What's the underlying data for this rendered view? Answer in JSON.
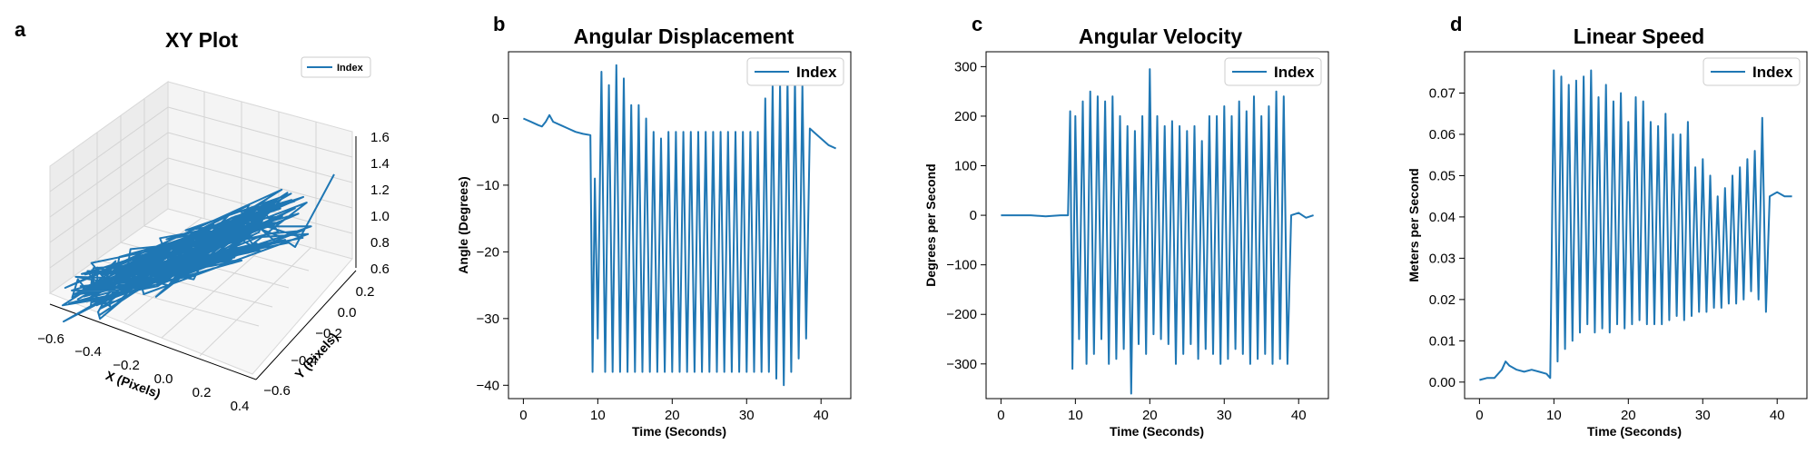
{
  "colors": {
    "series": "#1f77b4",
    "axis": "#000000",
    "pane": "#f2f2f2",
    "pane_grid": "#cfcfcf",
    "legend_border": "#cccccc"
  },
  "chart_data": [
    {
      "panel": "a",
      "type": "line3d",
      "title": "XY Plot",
      "xlabel": "X (Pixels)",
      "ylabel": "Y (Pixels)",
      "zlabel": "",
      "xlim": [
        -0.6,
        0.5
      ],
      "ylim": [
        -0.6,
        0.2
      ],
      "zlim": [
        0.6,
        1.6
      ],
      "xticks": [
        "−0.6",
        "−0.4",
        "−0.2",
        "0.0",
        "0.2",
        "0.4"
      ],
      "yticks": [
        "−0.6",
        "−0.4",
        "−0.2",
        "0.0",
        "0.2"
      ],
      "zticks": [
        "0.6",
        "0.8",
        "1.0",
        "1.2",
        "1.4",
        "1.6"
      ],
      "legend": [
        "Index"
      ],
      "legend_position": "top-right",
      "grid": true
    },
    {
      "panel": "b",
      "type": "line",
      "title": "Angular Displacement",
      "xlabel": "Time (Seconds)",
      "ylabel": "Angle (Degrees)",
      "xlim": [
        -2,
        44
      ],
      "ylim": [
        -42,
        10
      ],
      "xticks": [
        0,
        10,
        20,
        30,
        40
      ],
      "yticks": [
        0,
        -10,
        -20,
        -30,
        -40
      ],
      "legend": [
        "Index"
      ],
      "legend_position": "top-right",
      "grid": false,
      "series": [
        {
          "name": "Index",
          "x": [
            0,
            1,
            2,
            2.5,
            3,
            3.5,
            4,
            5,
            6,
            7,
            8,
            9,
            9.3,
            9.6,
            10,
            10.5,
            11,
            11.5,
            12,
            12.5,
            13,
            13.5,
            14,
            14.5,
            15,
            15.5,
            16,
            16.5,
            17,
            17.5,
            18,
            18.5,
            19,
            19.5,
            20,
            20.5,
            21,
            21.5,
            22,
            22.5,
            23,
            23.5,
            24,
            24.5,
            25,
            25.5,
            26,
            26.5,
            27,
            27.5,
            28,
            28.5,
            29,
            29.5,
            30,
            30.5,
            31,
            31.5,
            32,
            32.5,
            33,
            33.5,
            34,
            34.5,
            35,
            35.5,
            36,
            36.5,
            37,
            37.5,
            38,
            38.5,
            39,
            40,
            41,
            42
          ],
          "values": [
            0,
            -0.5,
            -1,
            -1.2,
            -0.5,
            0.5,
            -0.5,
            -1,
            -1.5,
            -2,
            -2.3,
            -2.5,
            -38,
            -9,
            -33,
            7,
            -38,
            5,
            -38,
            8,
            -38,
            6,
            -38,
            2,
            -38,
            2,
            -38,
            0,
            -38,
            -2,
            -38,
            -3,
            -38,
            -2,
            -38,
            -2,
            -38,
            -2,
            -38,
            -2,
            -38,
            -2,
            -38,
            -2,
            -38,
            -2,
            -38,
            -2,
            -38,
            -2,
            -38,
            -2,
            -38,
            -2,
            -38,
            -2,
            -38,
            -2,
            -38,
            3,
            -38,
            5,
            -39,
            5,
            -40,
            6,
            -38,
            6,
            -36,
            5,
            -33,
            -1.5,
            -2,
            -3,
            -4,
            -4.5
          ]
        }
      ]
    },
    {
      "panel": "c",
      "type": "line",
      "title": "Angular Velocity",
      "xlabel": "Time (Seconds)",
      "ylabel": "Degrees per Second",
      "xlim": [
        -2,
        44
      ],
      "ylim": [
        -370,
        330
      ],
      "xticks": [
        0,
        10,
        20,
        30,
        40
      ],
      "yticks": [
        300,
        200,
        100,
        0,
        -100,
        -200,
        -300
      ],
      "legend": [
        "Index"
      ],
      "legend_position": "top-right",
      "grid": false,
      "series": [
        {
          "name": "Index",
          "x": [
            0,
            2,
            4,
            6,
            8,
            9,
            9.3,
            9.6,
            10,
            10.5,
            11,
            11.5,
            12,
            12.5,
            13,
            13.5,
            14,
            14.5,
            15,
            15.5,
            16,
            16.5,
            17,
            17.5,
            18,
            18.5,
            19,
            19.5,
            20,
            20.5,
            21,
            21.5,
            22,
            22.5,
            23,
            23.5,
            24,
            24.5,
            25,
            25.5,
            26,
            26.5,
            27,
            27.5,
            28,
            28.5,
            29,
            29.5,
            30,
            30.5,
            31,
            31.5,
            32,
            32.5,
            33,
            33.5,
            34,
            34.5,
            35,
            35.5,
            36,
            36.5,
            37,
            37.5,
            38,
            38.5,
            39,
            40,
            41,
            42
          ],
          "values": [
            0,
            0,
            0,
            -2,
            0,
            0,
            210,
            -310,
            200,
            -250,
            230,
            -300,
            250,
            -280,
            240,
            -250,
            230,
            -300,
            240,
            -290,
            200,
            -270,
            180,
            -360,
            170,
            -260,
            200,
            -280,
            295,
            -240,
            200,
            -250,
            180,
            -260,
            190,
            -300,
            180,
            -280,
            170,
            -260,
            180,
            -290,
            150,
            -270,
            200,
            -280,
            200,
            -300,
            220,
            -290,
            200,
            -270,
            230,
            -280,
            210,
            -300,
            240,
            -290,
            200,
            -280,
            220,
            -300,
            250,
            -290,
            240,
            -300,
            0,
            5,
            -5,
            0
          ]
        }
      ]
    },
    {
      "panel": "d",
      "type": "line",
      "title": "Linear Speed",
      "xlabel": "Time (Seconds)",
      "ylabel": "Meters per Second",
      "xlim": [
        -2,
        44
      ],
      "ylim": [
        -0.004,
        0.08
      ],
      "xticks": [
        0,
        10,
        20,
        30,
        40
      ],
      "yticks": [
        0.07,
        0.06,
        0.05,
        0.04,
        0.03,
        0.02,
        0.01,
        0.0
      ],
      "legend": [
        "Index"
      ],
      "legend_position": "top-right",
      "grid": false,
      "series": [
        {
          "name": "Index",
          "x": [
            0,
            1,
            2,
            3,
            3.5,
            4,
            5,
            6,
            7,
            8,
            9,
            9.5,
            10,
            10.5,
            11,
            11.5,
            12,
            12.5,
            13,
            13.5,
            14,
            14.5,
            15,
            15.5,
            16,
            16.5,
            17,
            17.5,
            18,
            18.5,
            19,
            19.5,
            20,
            20.5,
            21,
            21.5,
            22,
            22.5,
            23,
            23.5,
            24,
            24.5,
            25,
            25.5,
            26,
            26.5,
            27,
            27.5,
            28,
            28.5,
            29,
            29.5,
            30,
            30.5,
            31,
            31.5,
            32,
            32.5,
            33,
            33.5,
            34,
            34.5,
            35,
            35.5,
            36,
            36.5,
            37,
            37.5,
            38,
            38.5,
            39,
            40,
            41,
            42
          ],
          "values": [
            0.0005,
            0.001,
            0.001,
            0.003,
            0.005,
            0.004,
            0.003,
            0.0025,
            0.003,
            0.0025,
            0.002,
            0.001,
            0.0755,
            0.005,
            0.074,
            0.008,
            0.072,
            0.01,
            0.073,
            0.012,
            0.074,
            0.014,
            0.0755,
            0.012,
            0.069,
            0.013,
            0.072,
            0.012,
            0.068,
            0.014,
            0.07,
            0.013,
            0.063,
            0.014,
            0.069,
            0.015,
            0.068,
            0.014,
            0.063,
            0.014,
            0.062,
            0.014,
            0.065,
            0.015,
            0.06,
            0.016,
            0.06,
            0.015,
            0.063,
            0.016,
            0.052,
            0.017,
            0.054,
            0.017,
            0.05,
            0.018,
            0.045,
            0.018,
            0.047,
            0.019,
            0.05,
            0.019,
            0.052,
            0.02,
            0.054,
            0.022,
            0.056,
            0.02,
            0.064,
            0.017,
            0.045,
            0.046,
            0.045,
            0.045
          ]
        }
      ]
    }
  ]
}
